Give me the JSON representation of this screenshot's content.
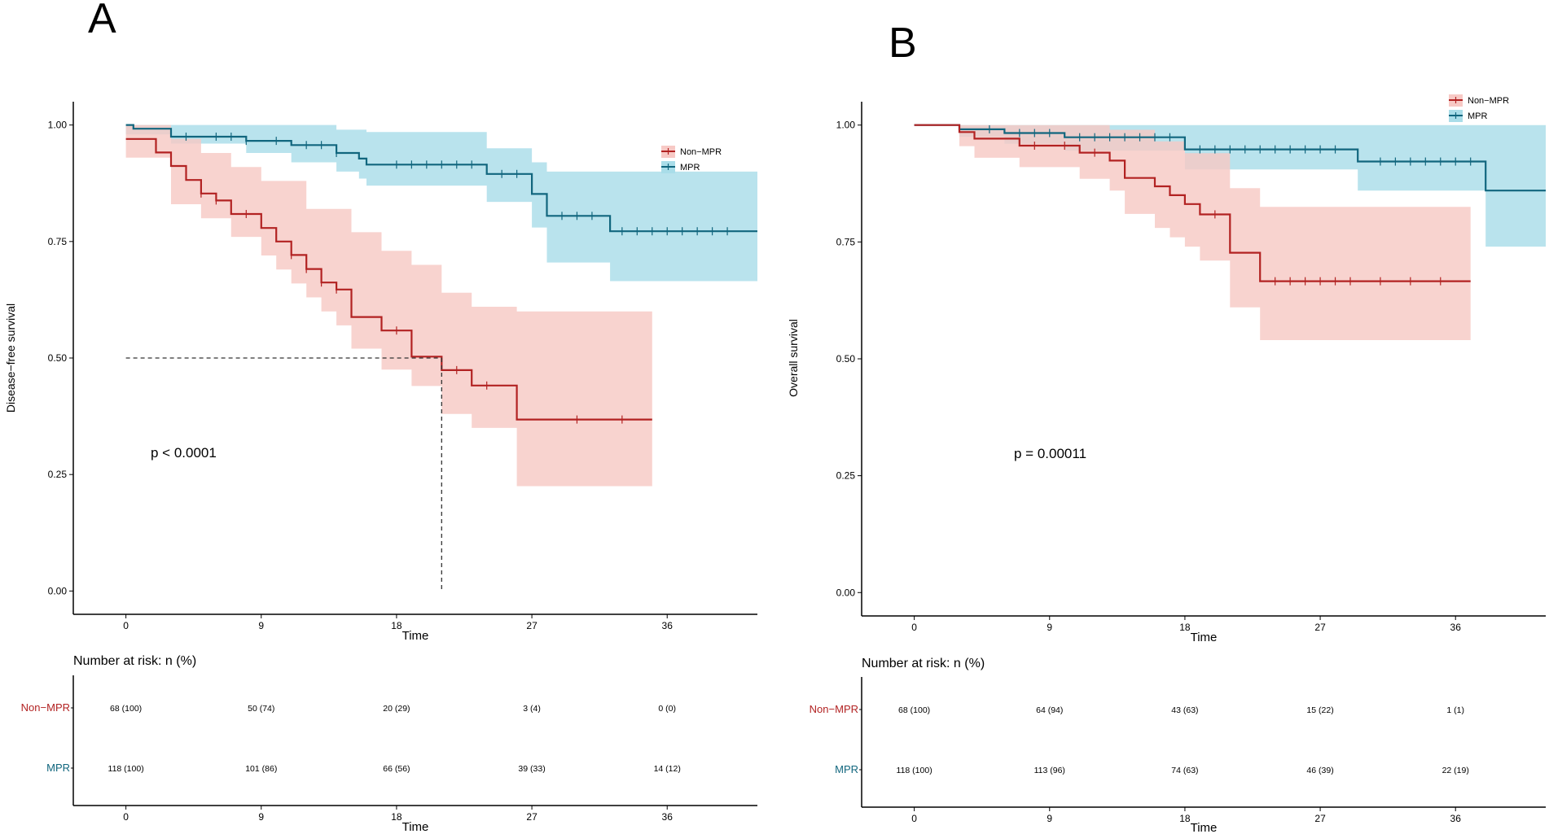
{
  "panels": [
    {
      "letter": "A",
      "risk_title": "Number at risk: n (%)",
      "chart_data": {
        "type": "line",
        "subtype": "kaplan-meier",
        "title": "",
        "xlabel": "Time",
        "ylabel": "Disease−free survival",
        "xlim": [
          -3.5,
          42
        ],
        "ylim": [
          -0.05,
          1.05
        ],
        "xticks": [
          0,
          9,
          18,
          27,
          36
        ],
        "yticks": [
          0,
          0.25,
          0.5,
          0.75,
          1
        ],
        "ytick_labels": [
          "0.00",
          "0.25",
          "0.50",
          "0.75",
          "1.00"
        ],
        "pvalue": "p < 0.0001",
        "legend": {
          "position": "top-right",
          "entries": [
            "Non−MPR",
            "MPR"
          ]
        },
        "median_line": {
          "time": 21,
          "survival": 0.5
        },
        "series": [
          {
            "name": "MPR",
            "color": "#11667e",
            "fill": "#a9dde9",
            "steps": [
              [
                0,
                1
              ],
              [
                0.5,
                0.992
              ],
              [
                3,
                0.975
              ],
              [
                8,
                0.966
              ],
              [
                11,
                0.957
              ],
              [
                14,
                0.94
              ],
              [
                15.5,
                0.928
              ],
              [
                16,
                0.915
              ],
              [
                24,
                0.895
              ],
              [
                27,
                0.852
              ],
              [
                28,
                0.805
              ],
              [
                32.2,
                0.772
              ],
              [
                42,
                0.772
              ]
            ],
            "upper": [
              [
                0,
                1
              ],
              [
                11,
                1
              ],
              [
                14,
                0.99
              ],
              [
                16,
                0.985
              ],
              [
                24,
                0.95
              ],
              [
                27,
                0.92
              ],
              [
                28,
                0.9
              ],
              [
                32.2,
                0.9
              ],
              [
                40,
                0.9
              ],
              [
                42,
                0.9
              ]
            ],
            "lower": [
              [
                0,
                0.98
              ],
              [
                3,
                0.96
              ],
              [
                8,
                0.94
              ],
              [
                11,
                0.92
              ],
              [
                14,
                0.9
              ],
              [
                15.5,
                0.885
              ],
              [
                16,
                0.87
              ],
              [
                24,
                0.835
              ],
              [
                27,
                0.78
              ],
              [
                28,
                0.705
              ],
              [
                32.2,
                0.665
              ],
              [
                42,
                0.665
              ]
            ],
            "censor_times": [
              4,
              6,
              7,
              8,
              10,
              12,
              13,
              14,
              18,
              19,
              20,
              21,
              22,
              23,
              25,
              26,
              29,
              30,
              31,
              33,
              34,
              35,
              36,
              37,
              38,
              39,
              40
            ]
          },
          {
            "name": "Non−MPR",
            "color": "#b22222",
            "fill": "#f7c9c5",
            "steps": [
              [
                0,
                0.97
              ],
              [
                2,
                0.941
              ],
              [
                3,
                0.912
              ],
              [
                4,
                0.882
              ],
              [
                5,
                0.853
              ],
              [
                6,
                0.838
              ],
              [
                7,
                0.809
              ],
              [
                9,
                0.779
              ],
              [
                10,
                0.75
              ],
              [
                11,
                0.721
              ],
              [
                12,
                0.691
              ],
              [
                13,
                0.662
              ],
              [
                14,
                0.647
              ],
              [
                15,
                0.588
              ],
              [
                17,
                0.559
              ],
              [
                19,
                0.503
              ],
              [
                21,
                0.474
              ],
              [
                23,
                0.441
              ],
              [
                26,
                0.368
              ],
              [
                35,
                0.368
              ]
            ],
            "upper": [
              [
                0,
                1
              ],
              [
                3,
                0.97
              ],
              [
                5,
                0.94
              ],
              [
                7,
                0.91
              ],
              [
                9,
                0.88
              ],
              [
                12,
                0.82
              ],
              [
                15,
                0.77
              ],
              [
                17,
                0.73
              ],
              [
                19,
                0.7
              ],
              [
                21,
                0.64
              ],
              [
                23,
                0.61
              ],
              [
                26,
                0.6
              ],
              [
                35,
                0.6
              ]
            ],
            "lower": [
              [
                0,
                0.93
              ],
              [
                3,
                0.83
              ],
              [
                5,
                0.8
              ],
              [
                7,
                0.76
              ],
              [
                9,
                0.72
              ],
              [
                10,
                0.69
              ],
              [
                11,
                0.66
              ],
              [
                12,
                0.63
              ],
              [
                13,
                0.6
              ],
              [
                14,
                0.57
              ],
              [
                15,
                0.52
              ],
              [
                17,
                0.475
              ],
              [
                19,
                0.44
              ],
              [
                21,
                0.38
              ],
              [
                23,
                0.35
              ],
              [
                26,
                0.225
              ],
              [
                35,
                0.225
              ]
            ],
            "censor_times": [
              5,
              6,
              8,
              11,
              12,
              13,
              14,
              18,
              22,
              24,
              30,
              33
            ]
          }
        ]
      },
      "risk_table": {
        "rows": [
          {
            "label": "Non−MPR",
            "color": "#b22222",
            "values": [
              "68 (100)",
              "50 (74)",
              "20 (29)",
              "3 (4)",
              "0 (0)"
            ]
          },
          {
            "label": "MPR",
            "color": "#11667e",
            "values": [
              "118 (100)",
              "101 (86)",
              "66 (56)",
              "39 (33)",
              "14 (12)"
            ]
          }
        ],
        "xticks": [
          0,
          9,
          18,
          27,
          36
        ],
        "xlabel": "Time"
      }
    },
    {
      "letter": "B",
      "risk_title": "Number at risk: n (%)",
      "chart_data": {
        "type": "line",
        "subtype": "kaplan-meier",
        "title": "",
        "xlabel": "Time",
        "ylabel": "Overall survival",
        "xlim": [
          -3.5,
          42
        ],
        "ylim": [
          -0.05,
          1.05
        ],
        "xticks": [
          0,
          9,
          18,
          27,
          36
        ],
        "yticks": [
          0,
          0.25,
          0.5,
          0.75,
          1
        ],
        "ytick_labels": [
          "0.00",
          "0.25",
          "0.50",
          "0.75",
          "1.00"
        ],
        "pvalue": "p = 0.00011",
        "legend": {
          "position": "top-right",
          "entries": [
            "Non−MPR",
            "MPR"
          ]
        },
        "series": [
          {
            "name": "MPR",
            "color": "#11667e",
            "fill": "#a9dde9",
            "steps": [
              [
                0,
                1
              ],
              [
                3,
                0.991
              ],
              [
                6,
                0.983
              ],
              [
                10,
                0.974
              ],
              [
                18,
                0.948
              ],
              [
                29.5,
                0.922
              ],
              [
                38,
                0.86
              ],
              [
                42,
                0.86
              ]
            ],
            "upper": [
              [
                0,
                1
              ],
              [
                38,
                1
              ],
              [
                42,
                1
              ]
            ],
            "lower": [
              [
                0,
                1
              ],
              [
                3,
                0.975
              ],
              [
                6,
                0.96
              ],
              [
                10,
                0.945
              ],
              [
                18,
                0.905
              ],
              [
                29.5,
                0.86
              ],
              [
                38,
                0.74
              ],
              [
                42,
                0.74
              ]
            ],
            "censor_times": [
              5,
              7,
              8,
              9,
              11,
              12,
              13,
              14,
              15,
              16,
              17,
              19,
              20,
              21,
              22,
              23,
              24,
              25,
              26,
              27,
              28,
              31,
              32,
              33,
              34,
              35,
              36,
              37
            ]
          },
          {
            "name": "Non−MPR",
            "color": "#b22222",
            "fill": "#f7c9c5",
            "steps": [
              [
                0,
                1
              ],
              [
                3,
                0.985
              ],
              [
                4,
                0.971
              ],
              [
                7,
                0.956
              ],
              [
                11,
                0.941
              ],
              [
                13,
                0.924
              ],
              [
                14,
                0.887
              ],
              [
                16,
                0.869
              ],
              [
                17,
                0.85
              ],
              [
                18,
                0.831
              ],
              [
                19,
                0.809
              ],
              [
                21,
                0.727
              ],
              [
                23,
                0.666
              ],
              [
                37,
                0.666
              ]
            ],
            "upper": [
              [
                0,
                1
              ],
              [
                11,
                1
              ],
              [
                13,
                0.99
              ],
              [
                16,
                0.965
              ],
              [
                18,
                0.94
              ],
              [
                21,
                0.865
              ],
              [
                23,
                0.825
              ],
              [
                37,
                0.825
              ]
            ],
            "lower": [
              [
                0,
                1
              ],
              [
                3,
                0.955
              ],
              [
                4,
                0.93
              ],
              [
                7,
                0.91
              ],
              [
                11,
                0.885
              ],
              [
                13,
                0.86
              ],
              [
                14,
                0.81
              ],
              [
                16,
                0.78
              ],
              [
                17,
                0.76
              ],
              [
                18,
                0.74
              ],
              [
                19,
                0.71
              ],
              [
                21,
                0.61
              ],
              [
                23,
                0.54
              ],
              [
                37,
                0.54
              ]
            ],
            "censor_times": [
              8,
              10,
              12,
              20,
              24,
              25,
              26,
              27,
              28,
              29,
              31,
              33,
              35
            ]
          }
        ]
      },
      "risk_table": {
        "rows": [
          {
            "label": "Non−MPR",
            "color": "#b22222",
            "values": [
              "68 (100)",
              "64 (94)",
              "43 (63)",
              "15 (22)",
              "1 (1)"
            ]
          },
          {
            "label": "MPR",
            "color": "#11667e",
            "values": [
              "118 (100)",
              "113 (96)",
              "74 (63)",
              "46 (39)",
              "22 (19)"
            ]
          }
        ],
        "xticks": [
          0,
          9,
          18,
          27,
          36
        ],
        "xlabel": "Time"
      }
    }
  ]
}
